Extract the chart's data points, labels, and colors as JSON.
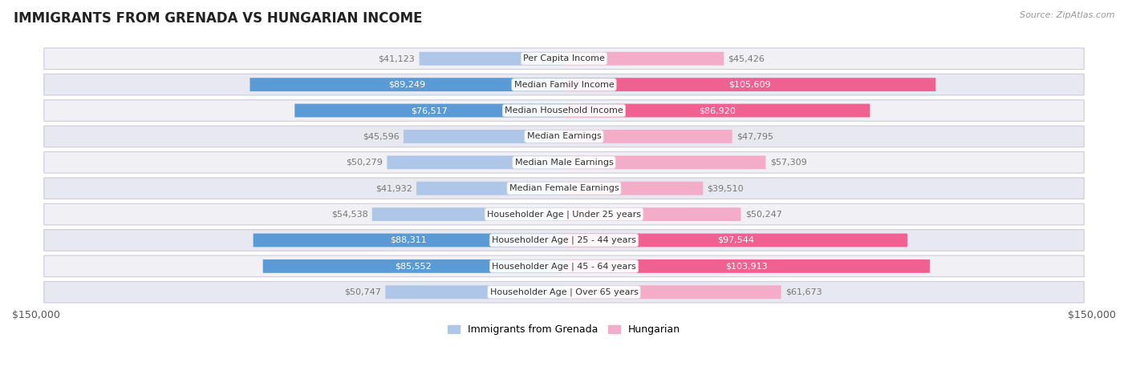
{
  "title": "IMMIGRANTS FROM GRENADA VS HUNGARIAN INCOME",
  "source": "Source: ZipAtlas.com",
  "categories": [
    "Per Capita Income",
    "Median Family Income",
    "Median Household Income",
    "Median Earnings",
    "Median Male Earnings",
    "Median Female Earnings",
    "Householder Age | Under 25 years",
    "Householder Age | 25 - 44 years",
    "Householder Age | 45 - 64 years",
    "Householder Age | Over 65 years"
  ],
  "grenada_values": [
    41123,
    89249,
    76517,
    45596,
    50279,
    41932,
    54538,
    88311,
    85552,
    50747
  ],
  "hungarian_values": [
    45426,
    105609,
    86920,
    47795,
    57309,
    39510,
    50247,
    97544,
    103913,
    61673
  ],
  "grenada_color_low": "#aec6e8",
  "grenada_color_high": "#5b9bd5",
  "hungarian_color_low": "#f4adc8",
  "hungarian_color_high": "#f06090",
  "label_color_inside": "#ffffff",
  "label_color_outside": "#777777",
  "xlim": 150000,
  "bar_height": 0.52,
  "row_bg_odd": "#f0f0f5",
  "row_bg_even": "#e8e8f0",
  "background_color": "#ffffff",
  "legend_grenada": "Immigrants from Grenada",
  "legend_hungarian": "Hungarian",
  "grenada_high_threshold": 70000,
  "hungarian_high_threshold": 70000,
  "label_fontsize": 8.0,
  "cat_fontsize": 8.0,
  "title_fontsize": 12,
  "source_fontsize": 8
}
